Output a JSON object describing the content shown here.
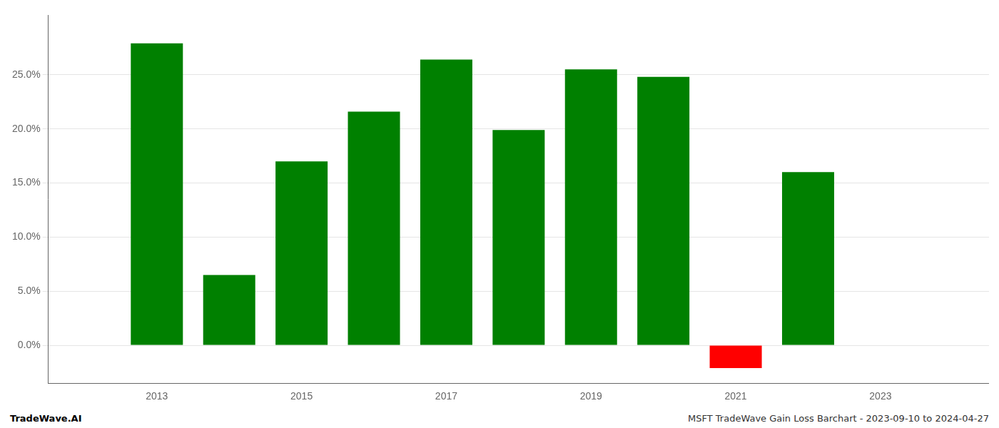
{
  "chart_data": {
    "type": "bar",
    "x": [
      2013,
      2014,
      2015,
      2016,
      2017,
      2018,
      2019,
      2020,
      2021,
      2022
    ],
    "values": [
      0.279,
      0.065,
      0.17,
      0.216,
      0.264,
      0.199,
      0.255,
      0.248,
      -0.021,
      0.16
    ],
    "colors": [
      "#008000",
      "#008000",
      "#008000",
      "#008000",
      "#008000",
      "#008000",
      "#008000",
      "#008000",
      "#ff0000",
      "#008000"
    ],
    "xlim": [
      2011.5,
      2024.5
    ],
    "xticks": [
      2013,
      2015,
      2017,
      2019,
      2021,
      2023
    ],
    "ylim": [
      -0.035,
      0.305
    ],
    "yticks": [
      {
        "value": 0.0,
        "label": "0.0%"
      },
      {
        "value": 0.05,
        "label": "5.0%"
      },
      {
        "value": 0.1,
        "label": "10.0%"
      },
      {
        "value": 0.15,
        "label": "15.0%"
      },
      {
        "value": 0.2,
        "label": "20.0%"
      },
      {
        "value": 0.25,
        "label": "25.0%"
      }
    ],
    "grid": true,
    "annotations": [
      "TradeWave.AI",
      "MSFT TradeWave Gain Loss Barchart - 2023-09-10 to 2024-04-27"
    ]
  }
}
